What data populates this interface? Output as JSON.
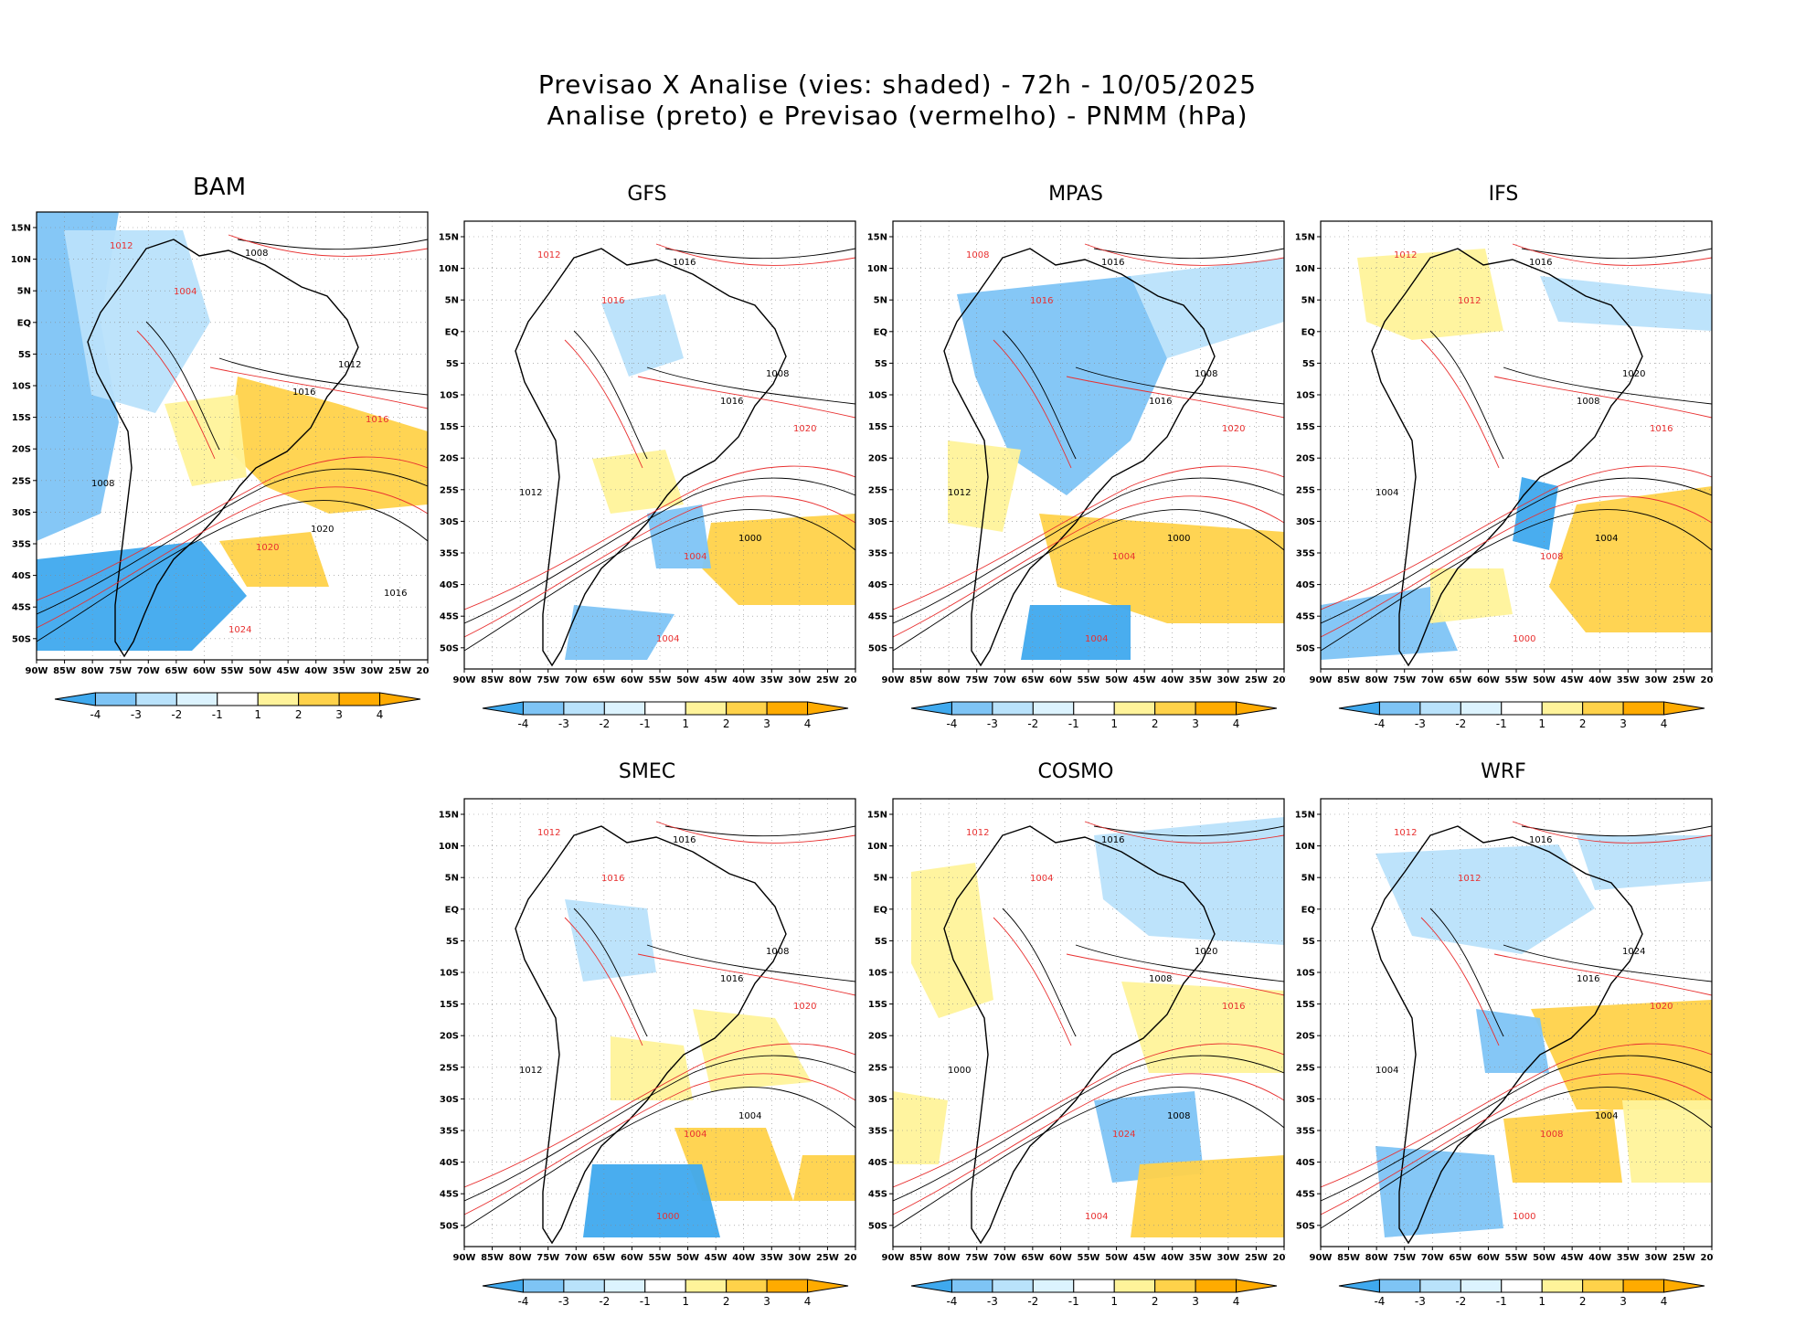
{
  "title_line1": "Previsao X Analise (vies: shaded) - 72h - 10/05/2025",
  "title_line2": "Analise (preto) e Previsao (vermelho) - PNMM (hPa)",
  "colors": {
    "neg4": "#3fa9ee",
    "neg3": "#7ec4f5",
    "neg2": "#b9e2fb",
    "neg1": "#dcf3fe",
    "pos1": "#ffffff",
    "pos2": "#fff39a",
    "pos3": "#ffd24a",
    "pos4": "#ffab00",
    "analysis_contour": "#000000",
    "forecast_contour": "#e83030"
  },
  "lat_ticks": [
    "15N",
    "10N",
    "5N",
    "EQ",
    "5S",
    "10S",
    "15S",
    "20S",
    "25S",
    "30S",
    "35S",
    "40S",
    "45S",
    "50S"
  ],
  "lon_ticks": [
    "90W",
    "85W",
    "80W",
    "75W",
    "70W",
    "65W",
    "60W",
    "55W",
    "50W",
    "45W",
    "40W",
    "35W",
    "30W",
    "25W",
    "20W"
  ],
  "colorbar_labels": [
    "-4",
    "-3",
    "-2",
    "-1",
    "1",
    "2",
    "3",
    "4"
  ],
  "panels": [
    {
      "name": "BAM",
      "contours": [
        "1008",
        "1012",
        "1016",
        "1016",
        "1012",
        "1020",
        "1020",
        "1024",
        "1008",
        "1004",
        "1016"
      ]
    },
    {
      "name": "GFS",
      "contours": [
        "1016",
        "1012",
        "1016",
        "1020",
        "1008",
        "1004",
        "1000",
        "1004",
        "1012",
        "1016"
      ]
    },
    {
      "name": "MPAS",
      "contours": [
        "1016",
        "1008",
        "1016",
        "1020",
        "1008",
        "1004",
        "1000",
        "1004",
        "1012",
        "1016"
      ]
    },
    {
      "name": "IFS",
      "contours": [
        "1016",
        "1012",
        "1008",
        "1016",
        "1020",
        "1008",
        "1004",
        "1000",
        "1004",
        "1012"
      ]
    },
    {
      "name": "SMEC",
      "contours": [
        "1016",
        "1012",
        "1016",
        "1020",
        "1008",
        "1004",
        "1004",
        "1000",
        "1012",
        "1016"
      ]
    },
    {
      "name": "COSMO",
      "contours": [
        "1016",
        "1012",
        "1008",
        "1016",
        "1020",
        "1024",
        "1008",
        "1004",
        "1000",
        "1004"
      ]
    },
    {
      "name": "WRF",
      "contours": [
        "1016",
        "1012",
        "1016",
        "1020",
        "1024",
        "1008",
        "1004",
        "1000",
        "1004",
        "1012"
      ]
    }
  ]
}
